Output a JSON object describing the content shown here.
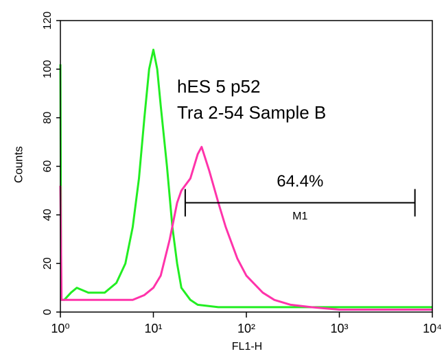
{
  "chart_data": {
    "type": "line",
    "xscale": "log",
    "xlabel": "FL1-H",
    "ylabel": "Counts",
    "annotations": [
      "hES 5 p52",
      "Tra 2-54 Sample B"
    ],
    "xlim": [
      1,
      10000
    ],
    "ylim": [
      0,
      120
    ],
    "xticks": [
      {
        "value": 1,
        "label": "10⁰"
      },
      {
        "value": 10,
        "label": "10¹"
      },
      {
        "value": 100,
        "label": "10²"
      },
      {
        "value": 1000,
        "label": "10³"
      },
      {
        "value": 10000,
        "label": "10⁴"
      }
    ],
    "yticks": [
      0,
      20,
      40,
      60,
      80,
      100,
      120
    ],
    "series": [
      {
        "color": "#22ee22",
        "x": [
          1,
          1.02,
          1.1,
          1.3,
          1.5,
          2,
          3,
          4,
          5,
          6,
          7,
          8,
          9,
          10,
          11,
          12,
          14,
          16,
          18,
          20,
          25,
          30,
          50,
          100,
          1000,
          10000
        ],
        "values": [
          102,
          5,
          5,
          8,
          10,
          8,
          8,
          12,
          20,
          35,
          55,
          80,
          100,
          108,
          100,
          85,
          60,
          35,
          20,
          10,
          5,
          3,
          2,
          2,
          2,
          2
        ]
      },
      {
        "color": "#ff33aa",
        "x": [
          1,
          1.03,
          1.1,
          2,
          4,
          6,
          8,
          10,
          12,
          15,
          18,
          20,
          25,
          30,
          33,
          40,
          50,
          60,
          80,
          100,
          150,
          200,
          300,
          500,
          1000,
          10000
        ],
        "values": [
          52,
          5,
          5,
          5,
          5,
          5,
          7,
          10,
          15,
          30,
          45,
          50,
          55,
          65,
          68,
          58,
          45,
          35,
          22,
          15,
          8,
          5,
          3,
          2,
          1,
          1
        ]
      }
    ],
    "gate": {
      "label": "M1",
      "percent": "64.4%",
      "range": [
        22,
        6500
      ],
      "y": 45
    }
  }
}
